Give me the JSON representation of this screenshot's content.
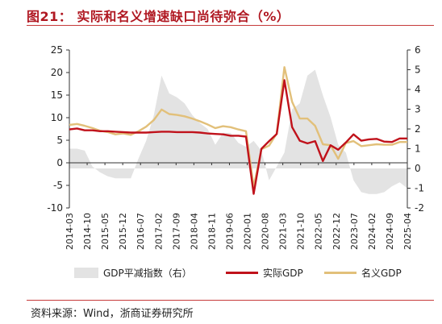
{
  "header": {
    "title": "图21：  实际和名义增速缺口尚待弥合（%）"
  },
  "footer": {
    "source": "资料来源：Wind，浙商证券研究所"
  },
  "chart_data": {
    "type": "line",
    "x": [
      "2014-03",
      "2014-06",
      "2014-09",
      "2014-12",
      "2015-03",
      "2015-06",
      "2015-09",
      "2015-12",
      "2016-03",
      "2016-06",
      "2016-09",
      "2016-12",
      "2017-03",
      "2017-06",
      "2017-09",
      "2017-12",
      "2018-03",
      "2018-06",
      "2018-09",
      "2018-12",
      "2019-03",
      "2019-06",
      "2019-09",
      "2019-12",
      "2020-03",
      "2020-06",
      "2020-09",
      "2020-12",
      "2021-03",
      "2021-06",
      "2021-09",
      "2021-12",
      "2022-03",
      "2022-06",
      "2022-09",
      "2022-12",
      "2023-03",
      "2023-06",
      "2023-09",
      "2023-12",
      "2024-03",
      "2024-06",
      "2024-09",
      "2024-12",
      "2025-03"
    ],
    "xticks": [
      "2014-03",
      "2014-10",
      "2015-05",
      "2015-12",
      "2016-07",
      "2017-02",
      "2017-09",
      "2018-04",
      "2018-11",
      "2019-06",
      "2020-01",
      "2020-08",
      "2021-03",
      "2021-10",
      "2022-05",
      "2022-12",
      "2023-07",
      "2024-02",
      "2024-09",
      "2025-04"
    ],
    "yleft": {
      "ticks": [
        -10,
        -5,
        0,
        5,
        10,
        15,
        20,
        25
      ],
      "lim": [
        -10,
        25
      ]
    },
    "yright": {
      "ticks": [
        -2,
        -1,
        0,
        1,
        2,
        3,
        4,
        5,
        6
      ],
      "lim": [
        -2,
        6
      ]
    },
    "series": [
      {
        "name": "GDP平减指数（右）",
        "type": "area",
        "axis": "right",
        "color": "#e3e3e3",
        "values": [
          1.0,
          1.0,
          0.9,
          0.1,
          -0.2,
          -0.4,
          -0.5,
          -0.5,
          -0.5,
          0.5,
          1.4,
          2.7,
          4.7,
          3.8,
          3.6,
          3.3,
          2.7,
          2.3,
          2.0,
          1.2,
          1.8,
          1.8,
          1.3,
          1.1,
          1.4,
          0.9,
          -0.6,
          0.1,
          0.8,
          3.0,
          3.3,
          4.7,
          5.0,
          3.7,
          2.6,
          1.2,
          0.8,
          -0.6,
          -1.2,
          -1.3,
          -1.3,
          -1.2,
          -0.9,
          -0.7,
          -1.0
        ]
      },
      {
        "name": "实际GDP",
        "type": "line",
        "axis": "left",
        "color": "#c0121b",
        "values": [
          7.4,
          7.6,
          7.2,
          7.2,
          7.0,
          7.0,
          6.9,
          6.8,
          6.7,
          6.7,
          6.7,
          6.8,
          6.9,
          6.9,
          6.8,
          6.8,
          6.8,
          6.7,
          6.5,
          6.4,
          6.3,
          6.0,
          6.0,
          5.8,
          -6.9,
          3.1,
          4.8,
          6.4,
          18.3,
          7.9,
          4.9,
          4.3,
          4.8,
          0.4,
          3.9,
          2.9,
          4.5,
          6.3,
          4.9,
          5.2,
          5.3,
          4.7,
          4.6,
          5.4,
          5.4
        ]
      },
      {
        "name": "名义GDP",
        "type": "line",
        "axis": "left",
        "color": "#e2c07a",
        "values": [
          8.4,
          8.6,
          8.2,
          7.7,
          7.1,
          6.8,
          6.3,
          6.5,
          6.2,
          7.0,
          8.0,
          9.5,
          11.8,
          10.8,
          10.6,
          10.3,
          9.8,
          9.2,
          8.5,
          7.7,
          8.1,
          7.9,
          7.4,
          7.0,
          -5.3,
          3.0,
          3.8,
          6.5,
          21.2,
          13.5,
          9.8,
          9.8,
          8.2,
          4.1,
          3.9,
          0.9,
          4.4,
          4.8,
          3.7,
          3.9,
          4.1,
          4.0,
          4.0,
          4.6,
          4.6
        ]
      }
    ]
  }
}
